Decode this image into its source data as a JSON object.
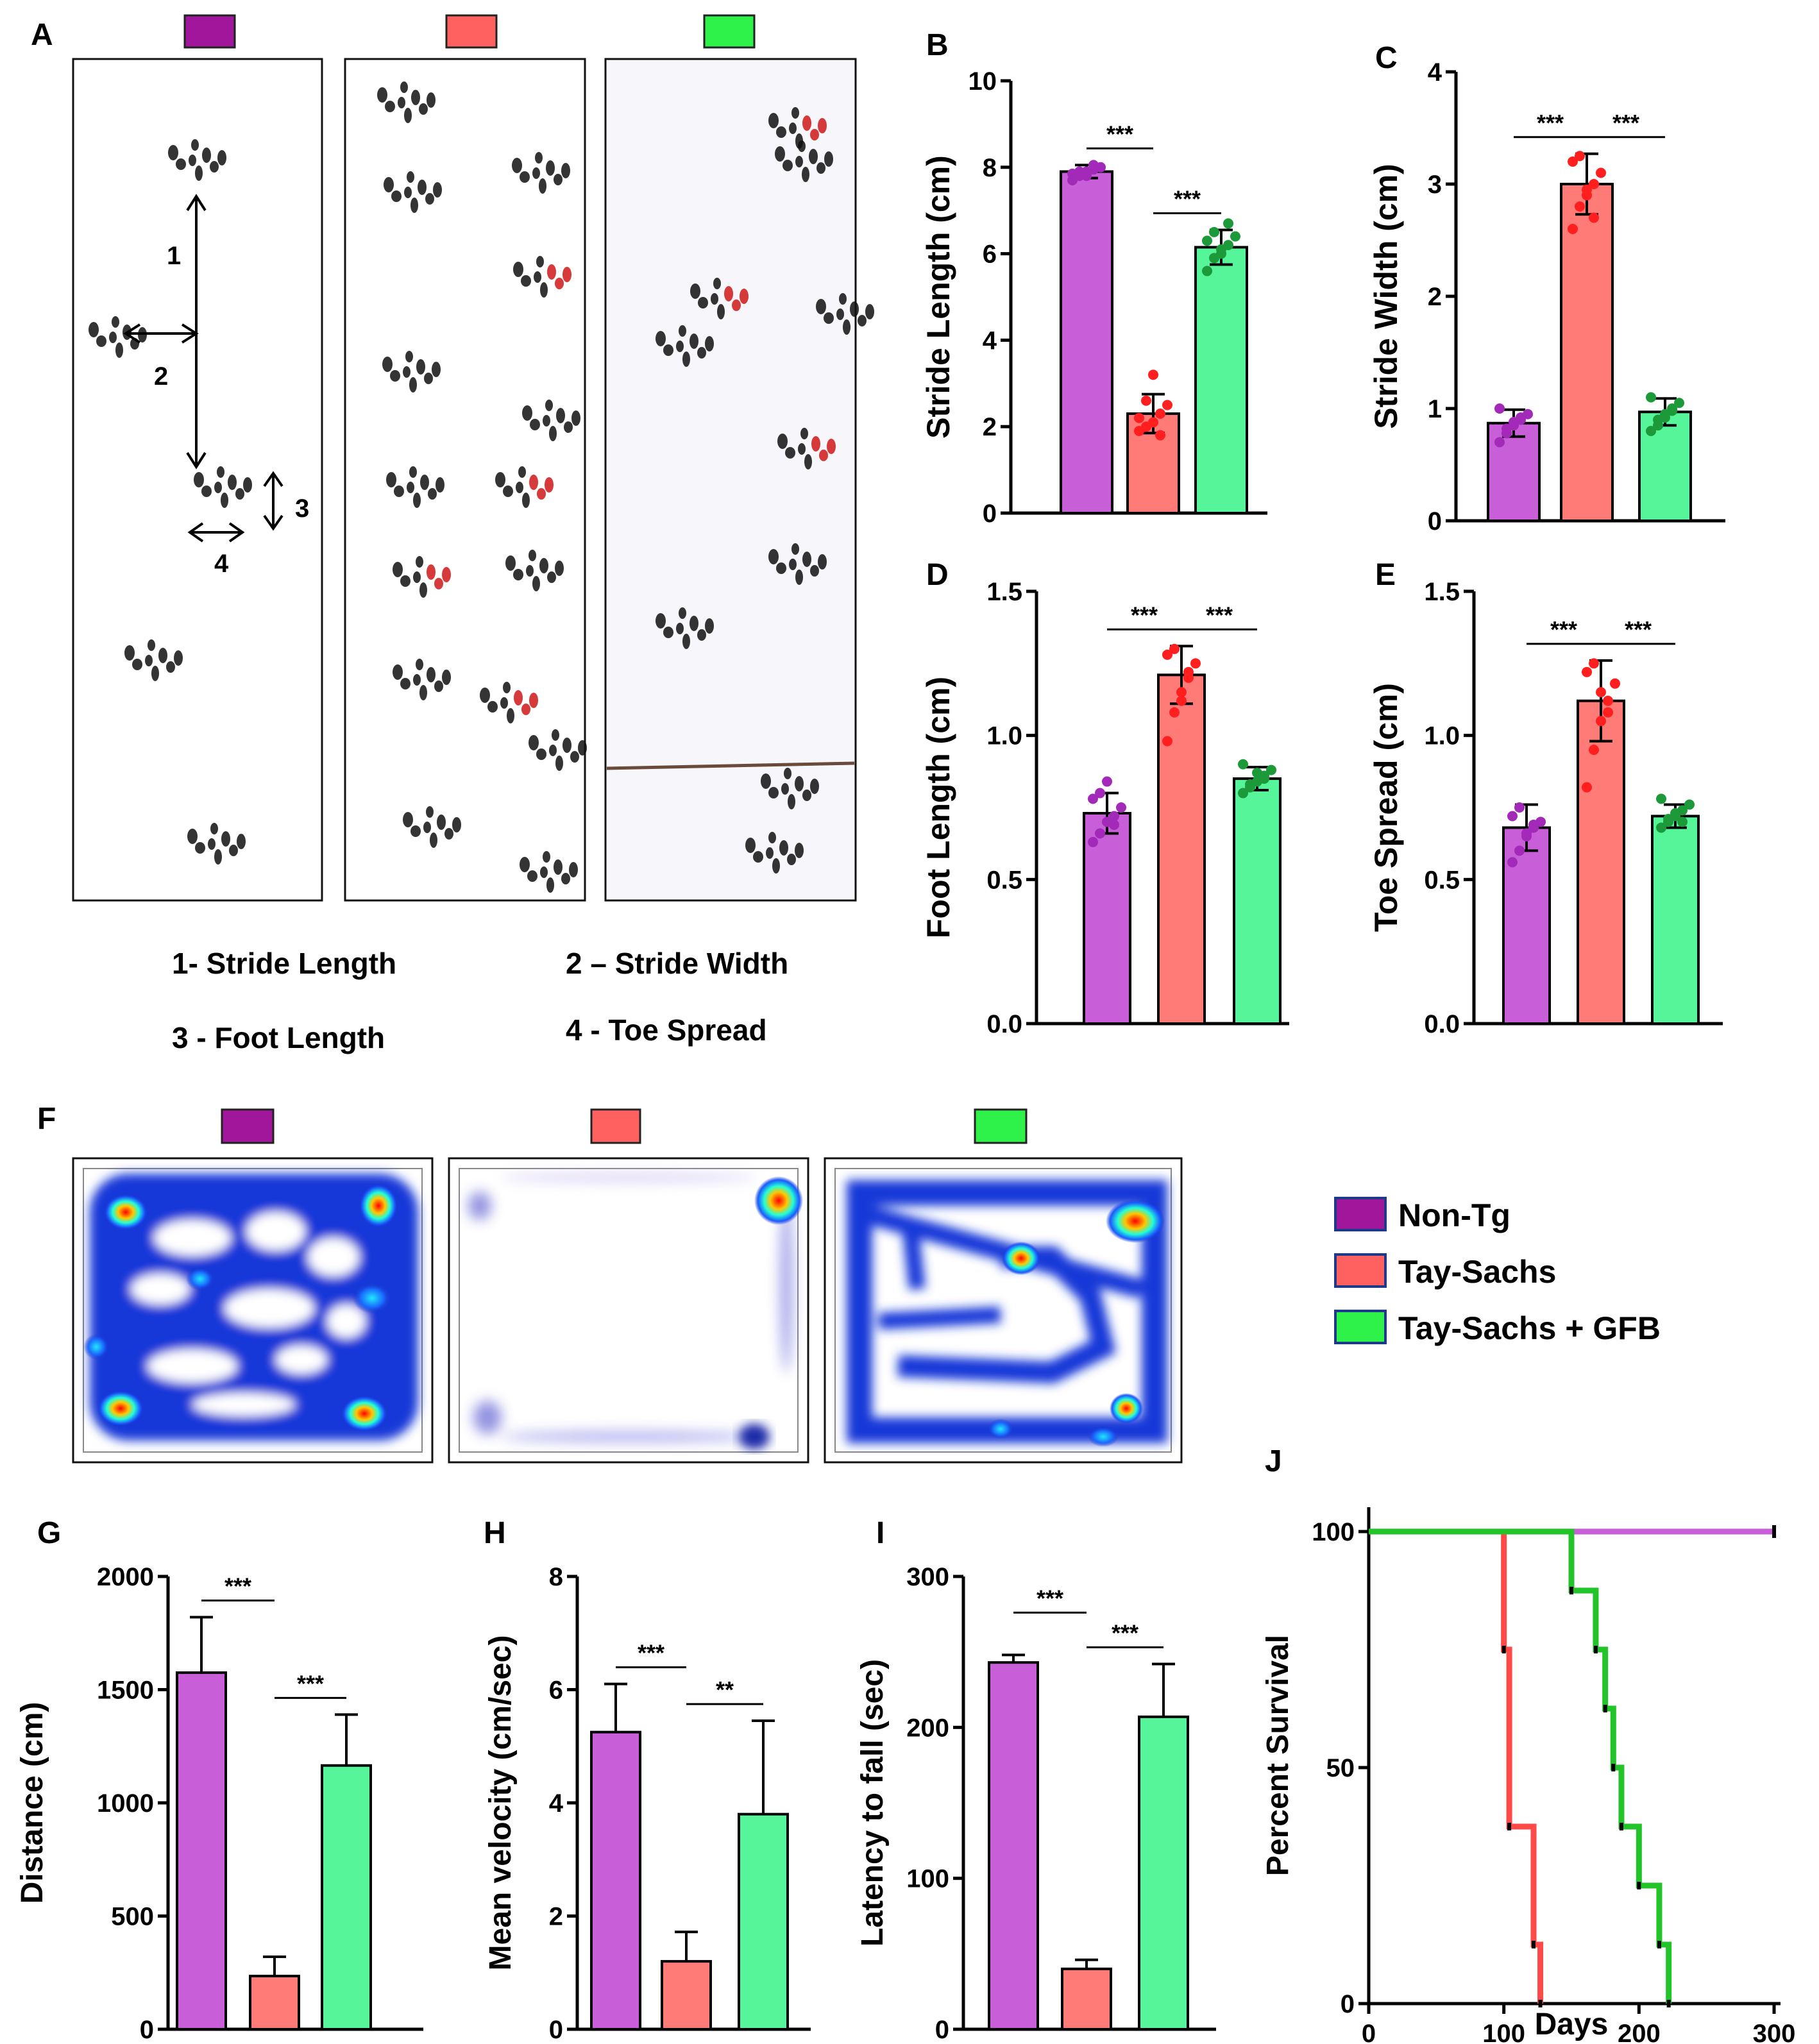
{
  "colors": {
    "nonTg": "#c85fd8",
    "taySachs": "#ff7b78",
    "taySachsGfb": "#57f59a",
    "nonTgBox": "#a0179c",
    "taySachsBox": "#ff6060",
    "taySachsGfbBox": "#2ef24a",
    "nonTgDot": "#a329b8",
    "taySachsDot": "#ff1f1f",
    "taySachsGfbDot": "#1c9a3a"
  },
  "panel_letters": [
    "A",
    "B",
    "C",
    "D",
    "E",
    "F",
    "G",
    "H",
    "I",
    "J"
  ],
  "panel_a": {
    "captions": [
      "1- Stride Length",
      "2 – Stride Width",
      "3 -  Foot Length",
      "4 -  Toe Spread"
    ],
    "arrow_labels": [
      "1",
      "2",
      "3",
      "4"
    ]
  },
  "legend": {
    "items": [
      "Non-Tg",
      "Tay-Sachs",
      "Tay-Sachs + GFB"
    ]
  },
  "chart_data": [
    {
      "id": "B",
      "type": "bar",
      "categories": [
        "Non-Tg",
        "Tay-Sachs",
        "Tay-Sachs + GFB"
      ],
      "values": [
        7.9,
        2.3,
        6.15
      ],
      "errors": [
        0.15,
        0.45,
        0.4
      ],
      "points": [
        [
          7.7,
          7.8,
          7.9,
          7.95,
          8.0,
          7.85,
          7.9,
          7.8,
          8.05
        ],
        [
          1.9,
          2.0,
          2.1,
          2.3,
          2.5,
          2.2,
          2.6,
          3.2,
          1.8
        ],
        [
          5.6,
          5.9,
          6.0,
          6.2,
          6.4,
          6.3,
          6.5,
          6.1,
          6.7
        ]
      ],
      "ylabel": "Stride Length (cm)",
      "ylim": [
        0,
        10
      ],
      "yticks": [
        0,
        2,
        4,
        6,
        8,
        10
      ],
      "sig": [
        {
          "from": 0,
          "to": 1,
          "text": "***"
        },
        {
          "from": 1,
          "to": 2,
          "text": "***"
        }
      ]
    },
    {
      "id": "C",
      "type": "bar",
      "categories": [
        "Non-Tg",
        "Tay-Sachs",
        "Tay-Sachs + GFB"
      ],
      "values": [
        0.87,
        3.0,
        0.97
      ],
      "errors": [
        0.12,
        0.27,
        0.12
      ],
      "points": [
        [
          0.7,
          0.78,
          0.85,
          0.9,
          0.95,
          1.0,
          0.82,
          0.88,
          0.92
        ],
        [
          2.6,
          2.8,
          2.9,
          3.0,
          3.1,
          3.2,
          3.25,
          2.95,
          2.7
        ],
        [
          0.8,
          0.85,
          0.95,
          1.0,
          1.05,
          1.1,
          0.9,
          0.92,
          0.98
        ]
      ],
      "ylabel": "Stride Width (cm)",
      "ylim": [
        0,
        4
      ],
      "yticks": [
        0,
        1,
        2,
        3,
        4
      ],
      "sig": [
        {
          "from": 0,
          "to": 1,
          "text": "***"
        },
        {
          "from": 1,
          "to": 2,
          "text": "***"
        }
      ]
    },
    {
      "id": "D",
      "type": "bar",
      "categories": [
        "Non-Tg",
        "Tay-Sachs",
        "Tay-Sachs + GFB"
      ],
      "values": [
        0.73,
        1.21,
        0.85
      ],
      "errors": [
        0.07,
        0.1,
        0.04
      ],
      "points": [
        [
          0.63,
          0.66,
          0.7,
          0.72,
          0.75,
          0.78,
          0.8,
          0.84,
          0.69
        ],
        [
          0.98,
          1.08,
          1.15,
          1.2,
          1.25,
          1.28,
          1.3,
          1.12,
          1.22
        ],
        [
          0.8,
          0.82,
          0.84,
          0.86,
          0.88,
          0.9,
          0.83,
          0.87,
          0.85
        ]
      ],
      "ylabel": "Foot Length (cm)",
      "ylim": [
        0,
        1.5
      ],
      "yticks": [
        "0.0",
        "0.5",
        "1.0",
        "1.5"
      ],
      "sig": [
        {
          "from": 0,
          "to": 1,
          "text": "***"
        },
        {
          "from": 1,
          "to": 2,
          "text": "***"
        }
      ]
    },
    {
      "id": "E",
      "type": "bar",
      "categories": [
        "Non-Tg",
        "Tay-Sachs",
        "Tay-Sachs + GFB"
      ],
      "values": [
        0.68,
        1.12,
        0.72
      ],
      "errors": [
        0.08,
        0.14,
        0.04
      ],
      "points": [
        [
          0.56,
          0.6,
          0.65,
          0.68,
          0.7,
          0.72,
          0.75,
          0.66,
          0.69
        ],
        [
          0.82,
          0.95,
          1.05,
          1.12,
          1.18,
          1.22,
          1.25,
          1.15,
          1.08
        ],
        [
          0.68,
          0.7,
          0.72,
          0.74,
          0.76,
          0.78,
          0.71,
          0.73,
          0.7
        ]
      ],
      "ylabel": "Toe Spread (cm)",
      "ylim": [
        0,
        1.5
      ],
      "yticks": [
        "0.0",
        "0.5",
        "1.0",
        "1.5"
      ],
      "sig": [
        {
          "from": 0,
          "to": 1,
          "text": "***"
        },
        {
          "from": 1,
          "to": 2,
          "text": "***"
        }
      ]
    },
    {
      "id": "G",
      "type": "bar",
      "categories": [
        "Non-Tg",
        "Tay-Sachs",
        "Tay-Sachs + GFB"
      ],
      "values": [
        1575,
        235,
        1165
      ],
      "errors": [
        245,
        85,
        225
      ],
      "ylabel": "Distance (cm)",
      "ylim": [
        0,
        2000
      ],
      "yticks": [
        0,
        500,
        1000,
        1500,
        2000
      ],
      "sig": [
        {
          "from": 0,
          "to": 1,
          "text": "***"
        },
        {
          "from": 1,
          "to": 2,
          "text": "***"
        }
      ]
    },
    {
      "id": "H",
      "type": "bar",
      "categories": [
        "Non-Tg",
        "Tay-Sachs",
        "Tay-Sachs + GFB"
      ],
      "values": [
        5.25,
        1.2,
        3.8
      ],
      "errors": [
        0.85,
        0.52,
        1.65
      ],
      "ylabel": "Mean velocity (cm/sec)",
      "ylim": [
        0,
        8
      ],
      "yticks": [
        0,
        2,
        4,
        6,
        8
      ],
      "sig": [
        {
          "from": 0,
          "to": 1,
          "text": "***"
        },
        {
          "from": 1,
          "to": 2,
          "text": "**"
        }
      ]
    },
    {
      "id": "I",
      "type": "bar",
      "categories": [
        "Non-Tg",
        "Tay-Sachs",
        "Tay-Sachs + GFB"
      ],
      "values": [
        243,
        40,
        207
      ],
      "errors": [
        5,
        6,
        35
      ],
      "ylabel": "Latency to fall (sec)",
      "ylim": [
        0,
        300
      ],
      "yticks": [
        0,
        100,
        200,
        300
      ],
      "sig": [
        {
          "from": 0,
          "to": 1,
          "text": "***"
        },
        {
          "from": 1,
          "to": 2,
          "text": "***"
        }
      ]
    },
    {
      "id": "J",
      "type": "line",
      "step": true,
      "xlabel": "Days",
      "ylabel": "Percent Survival",
      "xlim": [
        0,
        300
      ],
      "ylim": [
        0,
        100
      ],
      "xticks": [
        0,
        100,
        200,
        300
      ],
      "yticks": [
        0,
        50,
        100
      ],
      "series": [
        {
          "x": [
            0,
            300
          ],
          "y": [
            100,
            100
          ]
        },
        {
          "x": [
            0,
            100,
            100,
            104,
            104,
            122,
            122,
            127,
            127
          ],
          "y": [
            100,
            100,
            75,
            75,
            37.5,
            37.5,
            12.5,
            12.5,
            0
          ]
        },
        {
          "x": [
            0,
            150,
            150,
            168,
            168,
            175,
            175,
            181,
            181,
            187,
            187,
            200,
            200,
            215,
            215,
            222,
            222
          ],
          "y": [
            100,
            100,
            87.5,
            87.5,
            75,
            75,
            62.5,
            62.5,
            50,
            50,
            37.5,
            37.5,
            25,
            25,
            12.5,
            12.5,
            0
          ]
        }
      ]
    }
  ]
}
